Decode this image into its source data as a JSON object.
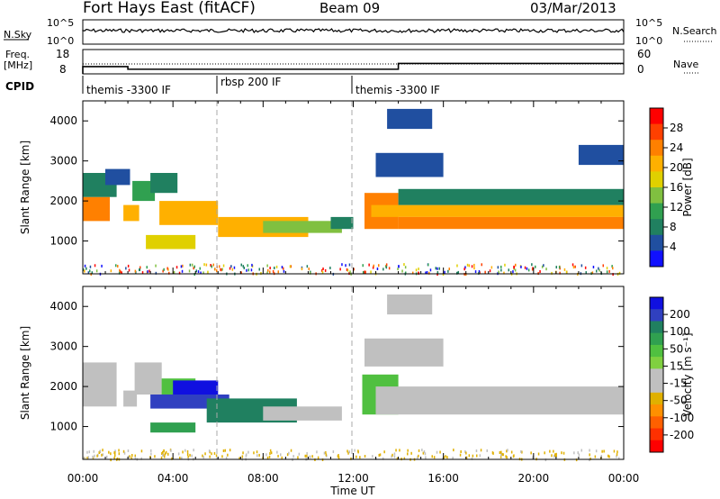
{
  "header": {
    "title": "Fort Hays East (fitACF)",
    "beam": "Beam 09",
    "date": "03/Mar/2013"
  },
  "noise_panel": {
    "left_label": "N.Sky",
    "right_label": "N.Search",
    "left_ticks": [
      "10^5",
      "10^0"
    ],
    "right_ticks": [
      "10^5",
      "10^0"
    ]
  },
  "freq_panel": {
    "left_label_top": "Freq.",
    "left_label_bottom": "[MHz]",
    "left_ticks": [
      "18",
      "8"
    ],
    "right_ticks": [
      "60",
      "0"
    ],
    "right_label": "Nave",
    "freq_steps": [
      {
        "t0": 0,
        "t1": 2,
        "mhz": 11.0
      },
      {
        "t0": 2,
        "t1": 14,
        "mhz": 9.9
      },
      {
        "t0": 14,
        "t1": 24,
        "mhz": 12.3
      }
    ]
  },
  "cpid": {
    "label": "CPID",
    "segments": [
      {
        "start_hour": 0,
        "text": "themis -3300 IF"
      },
      {
        "start_hour": 6,
        "text": "rbsp 200 IF"
      },
      {
        "start_hour": 12,
        "text": "themis -3300 IF"
      }
    ]
  },
  "chart_data": [
    {
      "type": "heatmap",
      "parameter": "power",
      "ylabel": "Slant Range [km]",
      "xlabel": "Time UT",
      "xlim_hours": [
        0,
        24
      ],
      "ylim_km": [
        180,
        4500
      ],
      "yticks": [
        1000,
        2000,
        3000,
        4000
      ],
      "xticks": [
        "00:00",
        "04:00",
        "08:00",
        "12:00",
        "16:00",
        "20:00",
        "00:00"
      ],
      "colorbar": {
        "label": "Power [dB]",
        "ticks": [
          "28",
          "24",
          "20",
          "16",
          "12",
          "8",
          "4"
        ],
        "colors": [
          "#ff0000",
          "#ff4000",
          "#ff8000",
          "#ffb000",
          "#e0d000",
          "#80c040",
          "#30a050",
          "#208060",
          "#204fa0",
          "#1010ff"
        ]
      },
      "regions": [
        {
          "t0": 0.0,
          "t1": 1.2,
          "r0": 1500,
          "r1": 2100,
          "level": 24
        },
        {
          "t0": 0.0,
          "t1": 1.5,
          "r0": 2100,
          "r1": 2700,
          "level": 10
        },
        {
          "t0": 1.0,
          "t1": 2.1,
          "r0": 2400,
          "r1": 2800,
          "level": 6
        },
        {
          "t0": 1.8,
          "t1": 2.5,
          "r0": 1500,
          "r1": 1900,
          "level": 22
        },
        {
          "t0": 2.2,
          "t1": 3.2,
          "r0": 2000,
          "r1": 2500,
          "level": 12
        },
        {
          "t0": 3.0,
          "t1": 4.2,
          "r0": 2200,
          "r1": 2700,
          "level": 9
        },
        {
          "t0": 3.4,
          "t1": 6.0,
          "r0": 1400,
          "r1": 2000,
          "level": 22
        },
        {
          "t0": 2.8,
          "t1": 5.0,
          "r0": 800,
          "r1": 1150,
          "level": 17
        },
        {
          "t0": 6.0,
          "t1": 10.0,
          "r0": 1100,
          "r1": 1600,
          "level": 21
        },
        {
          "t0": 8.0,
          "t1": 11.5,
          "r0": 1200,
          "r1": 1500,
          "level": 14
        },
        {
          "t0": 11.0,
          "t1": 12.0,
          "r0": 1300,
          "r1": 1600,
          "level": 10
        },
        {
          "t0": 12.5,
          "t1": 14.0,
          "r0": 1300,
          "r1": 2200,
          "level": 23
        },
        {
          "t0": 12.8,
          "t1": 24.0,
          "r0": 1600,
          "r1": 1900,
          "level": 20
        },
        {
          "t0": 14.0,
          "t1": 24.0,
          "r0": 1300,
          "r1": 1600,
          "level": 25
        },
        {
          "t0": 14.0,
          "t1": 24.0,
          "r0": 1900,
          "r1": 2300,
          "level": 8
        },
        {
          "t0": 13.0,
          "t1": 16.0,
          "r0": 2600,
          "r1": 3200,
          "level": 5
        },
        {
          "t0": 22.0,
          "t1": 24.0,
          "r0": 2900,
          "r1": 3400,
          "level": 5
        },
        {
          "t0": 13.5,
          "t1": 15.5,
          "r0": 3800,
          "r1": 4300,
          "level": 6
        }
      ]
    },
    {
      "type": "heatmap",
      "parameter": "velocity",
      "ylabel": "Slant Range [km]",
      "xlabel": "Time UT",
      "xlim_hours": [
        0,
        24
      ],
      "ylim_km": [
        180,
        4500
      ],
      "yticks": [
        1000,
        2000,
        3000,
        4000
      ],
      "xticks": [
        "00:00",
        "04:00",
        "08:00",
        "12:00",
        "16:00",
        "20:00",
        "00:00"
      ],
      "colorbar": {
        "label": "Velocity [m s⁻¹]",
        "ticks": [
          "200",
          "100",
          "50",
          "15",
          "-15",
          "-50",
          "-100",
          "-200"
        ],
        "colors": [
          "#1010e0",
          "#3040c0",
          "#208060",
          "#30a050",
          "#50c040",
          "#80d040",
          "#c0c0c0",
          "#c0c0c0",
          "#e0b000",
          "#ff9000",
          "#ff6000",
          "#ff3000",
          "#ff0000"
        ]
      },
      "regions": [
        {
          "t0": 0.0,
          "t1": 1.5,
          "r0": 1500,
          "r1": 2600,
          "level": 0
        },
        {
          "t0": 1.8,
          "t1": 2.4,
          "r0": 1500,
          "r1": 1900,
          "level": 0
        },
        {
          "t0": 2.3,
          "t1": 3.5,
          "r0": 1800,
          "r1": 2600,
          "level": 0
        },
        {
          "t0": 3.5,
          "t1": 5.0,
          "r0": 1800,
          "r1": 2200,
          "level": 20
        },
        {
          "t0": 4.0,
          "t1": 6.0,
          "r0": 1750,
          "r1": 2150,
          "level": 240
        },
        {
          "t0": 3.0,
          "t1": 6.5,
          "r0": 1450,
          "r1": 1800,
          "level": 110
        },
        {
          "t0": 5.5,
          "t1": 9.5,
          "r0": 1100,
          "r1": 1700,
          "level": 75
        },
        {
          "t0": 8.0,
          "t1": 11.5,
          "r0": 1150,
          "r1": 1500,
          "level": 0
        },
        {
          "t0": 3.0,
          "t1": 5.0,
          "r0": 850,
          "r1": 1100,
          "level": 40
        },
        {
          "t0": 12.4,
          "t1": 14.0,
          "r0": 1300,
          "r1": 2300,
          "level": 25
        },
        {
          "t0": 13.0,
          "t1": 24.0,
          "r0": 1300,
          "r1": 2000,
          "level": 0
        },
        {
          "t0": 12.5,
          "t1": 16.0,
          "r0": 2500,
          "r1": 3200,
          "level": 0
        },
        {
          "t0": 13.5,
          "t1": 15.5,
          "r0": 3800,
          "r1": 4300,
          "level": 0
        }
      ]
    }
  ],
  "colors": {
    "axis": "#000000",
    "grid_dash": "#aaaaaa",
    "background": "#ffffff"
  }
}
